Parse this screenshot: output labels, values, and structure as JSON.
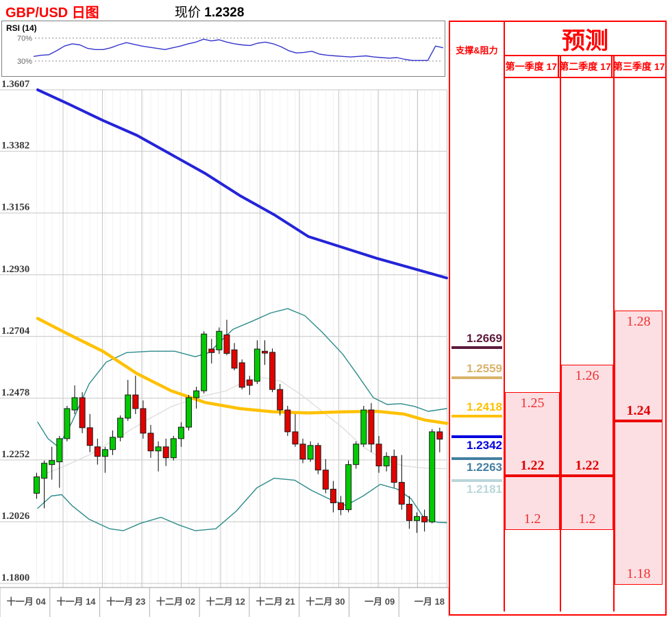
{
  "title": {
    "symbol": "GBP/USD 日图",
    "price_label": "现价",
    "price_value": "1.2328"
  },
  "rsi_panel": {
    "label": "RSI (14)",
    "upper_level": "70%",
    "lower_level": "30%"
  },
  "sr_panel": {
    "header": "支撑&阻力",
    "levels": [
      {
        "value": "1.2669",
        "color": "#5C1A3C",
        "label_side": "above"
      },
      {
        "value": "1.2559",
        "color": "#D8B36B",
        "label_side": "above"
      },
      {
        "value": "1.2418",
        "color": "#FFC103",
        "label_side": "above"
      },
      {
        "value": "1.2342",
        "color": "#0000E0",
        "label_side": "below"
      },
      {
        "value": "1.2263",
        "color": "#447FA0",
        "label_side": "below"
      },
      {
        "value": "1.2181",
        "color": "#BAD6DA",
        "label_side": "below"
      }
    ]
  },
  "forecast": {
    "header": "预测",
    "columns": [
      {
        "label": "第一季度 17",
        "high": "1.25",
        "mid": "1.22",
        "low": "1.2"
      },
      {
        "label": "第二季度 17",
        "high": "1.26",
        "mid": "1.22",
        "low": "1.2"
      },
      {
        "label": "第三季度 17",
        "high": "1.28",
        "mid": "1.24",
        "low": "1.18"
      }
    ]
  },
  "chart_data": {
    "type": "candlestick",
    "title": "GBP/USD 日图",
    "current_price": 1.2328,
    "y_axis_labels": [
      "1.3607",
      "1.3382",
      "1.3156",
      "1.2930",
      "1.2704",
      "1.2478",
      "1.2252",
      "1.2026",
      "1.1800"
    ],
    "y_range": [
      1.18,
      1.3607
    ],
    "x_axis_labels": [
      "十一月 04",
      "十一月 14",
      "十一月 23",
      "十二月 02",
      "十二月 12",
      "十二月 21",
      "十二月 30",
      "一月 09",
      "一月 18"
    ],
    "grid": true,
    "colors": {
      "up_candle": "#00CB00",
      "down_candle": "#E00300",
      "candle_border": "#1a1a1a",
      "ma_long": "#2424D8",
      "ma_short": "#FFC103",
      "band": "#2E8B8B",
      "band_mid": "#DCDCDC",
      "rsi_line": "#3434CC",
      "gridline": "#C6C6C6",
      "axis_text": "#3a3a3a",
      "forecast_fill": "#fcdfe3",
      "accent_red": "#FF0000"
    },
    "candles_ohlc": [
      [
        1.213,
        1.2205,
        1.211,
        1.219
      ],
      [
        1.2185,
        1.225,
        1.2075,
        1.224
      ],
      [
        1.2235,
        1.23,
        1.218,
        1.225
      ],
      [
        1.2245,
        1.234,
        1.215,
        1.233
      ],
      [
        1.233,
        1.245,
        1.232,
        1.244
      ],
      [
        1.2435,
        1.2525,
        1.242,
        1.248
      ],
      [
        1.248,
        1.25,
        1.235,
        1.237
      ],
      [
        1.237,
        1.242,
        1.228,
        1.2305
      ],
      [
        1.23,
        1.233,
        1.2235,
        1.2265
      ],
      [
        1.2265,
        1.23,
        1.2205,
        1.229
      ],
      [
        1.229,
        1.236,
        1.227,
        1.2335
      ],
      [
        1.2335,
        1.2415,
        1.232,
        1.2405
      ],
      [
        1.2405,
        1.2545,
        1.2395,
        1.249
      ],
      [
        1.249,
        1.256,
        1.242,
        1.244
      ],
      [
        1.244,
        1.247,
        1.233,
        1.235
      ],
      [
        1.235,
        1.238,
        1.226,
        1.2285
      ],
      [
        1.2285,
        1.232,
        1.221,
        1.23
      ],
      [
        1.23,
        1.233,
        1.223,
        1.226
      ],
      [
        1.226,
        1.234,
        1.225,
        1.233
      ],
      [
        1.233,
        1.239,
        1.23,
        1.2372
      ],
      [
        1.2372,
        1.249,
        1.236,
        1.248
      ],
      [
        1.248,
        1.252,
        1.244,
        1.2505
      ],
      [
        1.2505,
        1.2723,
        1.2495,
        1.2713
      ],
      [
        1.2658,
        1.2695,
        1.2605,
        1.2645
      ],
      [
        1.2655,
        1.2737,
        1.264,
        1.2723
      ],
      [
        1.271,
        1.2765,
        1.2635,
        1.2642
      ],
      [
        1.2655,
        1.268,
        1.258,
        1.2588
      ],
      [
        1.2608,
        1.262,
        1.251,
        1.2518
      ],
      [
        1.2545,
        1.256,
        1.249,
        1.2525
      ],
      [
        1.254,
        1.269,
        1.253,
        1.2658
      ],
      [
        1.265,
        1.269,
        1.26,
        1.2643
      ],
      [
        1.2646,
        1.266,
        1.25,
        1.251
      ],
      [
        1.251,
        1.253,
        1.2415,
        1.2435
      ],
      [
        1.2435,
        1.245,
        1.234,
        1.2355
      ],
      [
        1.2355,
        1.242,
        1.23,
        1.231
      ],
      [
        1.231,
        1.233,
        1.224,
        1.2255
      ],
      [
        1.2255,
        1.232,
        1.2245,
        1.2305
      ],
      [
        1.2305,
        1.2315,
        1.22,
        1.2215
      ],
      [
        1.2215,
        1.2255,
        1.213,
        1.2145
      ],
      [
        1.2145,
        1.2175,
        1.206,
        1.2095
      ],
      [
        1.2095,
        1.212,
        1.205,
        1.207
      ],
      [
        1.207,
        1.225,
        1.206,
        1.2235
      ],
      [
        1.2235,
        1.232,
        1.222,
        1.231
      ],
      [
        1.231,
        1.245,
        1.23,
        1.2435
      ],
      [
        1.2435,
        1.246,
        1.228,
        1.231
      ],
      [
        1.231,
        1.234,
        1.2205,
        1.223
      ],
      [
        1.223,
        1.228,
        1.221,
        1.2265
      ],
      [
        1.2265,
        1.229,
        1.215,
        1.217
      ],
      [
        1.217,
        1.227,
        1.207,
        1.209
      ],
      [
        1.209,
        1.212,
        1.2,
        1.203
      ],
      [
        1.203,
        1.206,
        1.1985,
        1.2045
      ],
      [
        1.2045,
        1.207,
        1.199,
        1.2025
      ],
      [
        1.2025,
        1.2365,
        1.202,
        1.2355
      ],
      [
        1.2355,
        1.237,
        1.228,
        1.2328
      ]
    ],
    "rsi_values": [
      38,
      40,
      41,
      48,
      56,
      60,
      58,
      52,
      50,
      50,
      53,
      58,
      62,
      59,
      56,
      54,
      52,
      50,
      53,
      56,
      60,
      63,
      68,
      65,
      67,
      63,
      60,
      58,
      57,
      61,
      63,
      60,
      55,
      48,
      44,
      45,
      47,
      42,
      40,
      39,
      38,
      37,
      38,
      39,
      37,
      36,
      35,
      36,
      33,
      31,
      31,
      31,
      56,
      53
    ],
    "ma_long_blue": [
      [
        55,
        1.3607
      ],
      [
        100,
        1.3555
      ],
      [
        150,
        1.3495
      ],
      [
        200,
        1.344
      ],
      [
        250,
        1.337
      ],
      [
        300,
        1.33
      ],
      [
        350,
        1.322
      ],
      [
        400,
        1.315
      ],
      [
        450,
        1.307
      ],
      [
        500,
        1.303
      ],
      [
        550,
        1.299
      ],
      [
        600,
        1.2955
      ],
      [
        652,
        1.2918
      ]
    ],
    "ma_yellow": [
      [
        55,
        1.277
      ],
      [
        100,
        1.2712
      ],
      [
        150,
        1.265
      ],
      [
        200,
        1.2568
      ],
      [
        250,
        1.2505
      ],
      [
        300,
        1.2462
      ],
      [
        350,
        1.244
      ],
      [
        400,
        1.2428
      ],
      [
        450,
        1.2424
      ],
      [
        500,
        1.2428
      ],
      [
        550,
        1.243
      ],
      [
        590,
        1.242
      ],
      [
        620,
        1.2398
      ],
      [
        652,
        1.2386
      ]
    ],
    "band_upper": [
      [
        55,
        1.239
      ],
      [
        70,
        1.233
      ],
      [
        85,
        1.23
      ],
      [
        105,
        1.239
      ],
      [
        130,
        1.253
      ],
      [
        155,
        1.261
      ],
      [
        185,
        1.2645
      ],
      [
        220,
        1.265
      ],
      [
        255,
        1.265
      ],
      [
        285,
        1.263
      ],
      [
        305,
        1.2645
      ],
      [
        340,
        1.273
      ],
      [
        370,
        1.2762
      ],
      [
        395,
        1.279
      ],
      [
        420,
        1.2806
      ],
      [
        445,
        1.278
      ],
      [
        470,
        1.272
      ],
      [
        500,
        1.264
      ],
      [
        520,
        1.257
      ],
      [
        545,
        1.248
      ],
      [
        565,
        1.2455
      ],
      [
        585,
        1.2458
      ],
      [
        605,
        1.2448
      ],
      [
        625,
        1.243
      ],
      [
        652,
        1.244
      ]
    ],
    "band_lower": [
      [
        55,
        1.2075
      ],
      [
        75,
        1.212
      ],
      [
        90,
        1.2125
      ],
      [
        105,
        1.2085
      ],
      [
        130,
        1.2035
      ],
      [
        160,
        1.2
      ],
      [
        180,
        1.1993
      ],
      [
        205,
        1.202
      ],
      [
        235,
        1.2042
      ],
      [
        260,
        1.2015
      ],
      [
        285,
        1.1993
      ],
      [
        315,
        1.2
      ],
      [
        345,
        1.2065
      ],
      [
        375,
        1.215
      ],
      [
        400,
        1.2185
      ],
      [
        430,
        1.2178
      ],
      [
        455,
        1.214
      ],
      [
        480,
        1.211
      ],
      [
        505,
        1.2085
      ],
      [
        530,
        1.212
      ],
      [
        555,
        1.2163
      ],
      [
        580,
        1.2145
      ],
      [
        600,
        1.211
      ],
      [
        620,
        1.2035
      ],
      [
        640,
        1.2023
      ],
      [
        652,
        1.2022
      ]
    ],
    "band_middle": [
      [
        55,
        1.219
      ],
      [
        90,
        1.2225
      ],
      [
        130,
        1.227
      ],
      [
        170,
        1.233
      ],
      [
        210,
        1.2392
      ],
      [
        250,
        1.2447
      ],
      [
        290,
        1.2482
      ],
      [
        330,
        1.2505
      ],
      [
        360,
        1.2542
      ],
      [
        385,
        1.2553
      ],
      [
        410,
        1.254
      ],
      [
        440,
        1.249
      ],
      [
        470,
        1.243
      ],
      [
        500,
        1.237
      ],
      [
        530,
        1.23
      ],
      [
        560,
        1.2252
      ],
      [
        590,
        1.223
      ],
      [
        620,
        1.2222
      ],
      [
        652,
        1.222
      ]
    ],
    "rsi_thresholds": [
      70,
      30
    ]
  }
}
